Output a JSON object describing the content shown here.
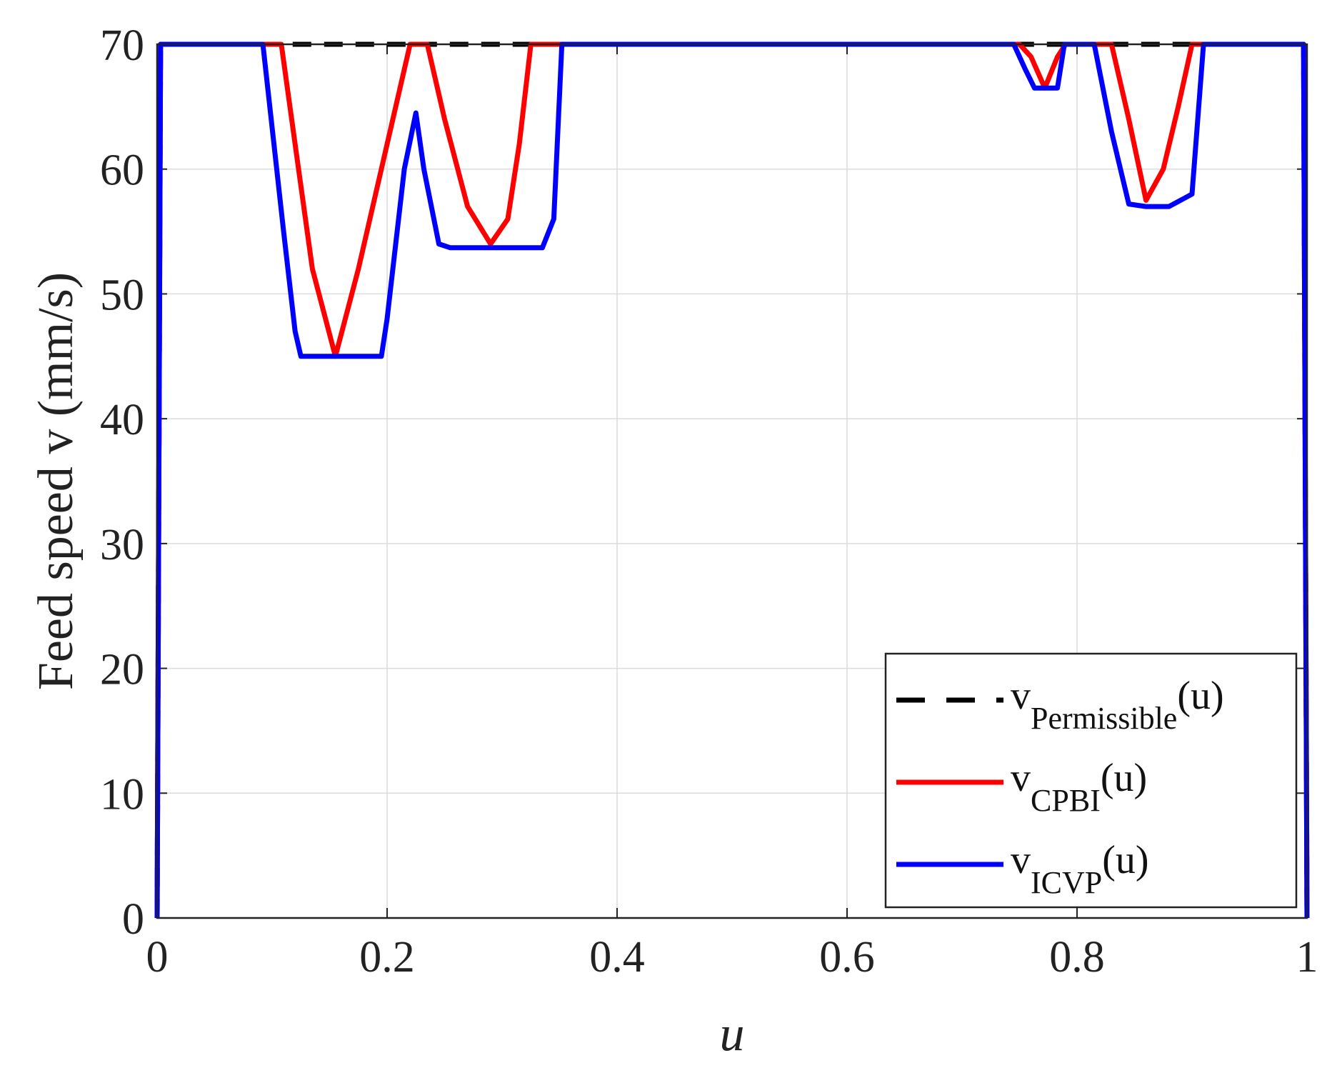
{
  "chart_data": {
    "type": "line",
    "xlabel": "u",
    "ylabel": "Feed speed v (mm/s)",
    "xlim": [
      0,
      1
    ],
    "ylim": [
      0,
      70
    ],
    "xticks": [
      "0",
      "0.2",
      "0.4",
      "0.6",
      "0.8",
      "1"
    ],
    "yticks": [
      "0",
      "10",
      "20",
      "30",
      "40",
      "50",
      "60",
      "70"
    ],
    "grid": true,
    "legend_position": "bottom-right",
    "series": [
      {
        "name": "Permissible",
        "legend_main": "v",
        "legend_sub": "Permissible",
        "legend_tail": "(u)",
        "color": "#000000",
        "style": "dashed",
        "x": [
          0,
          0.003,
          0.997,
          1
        ],
        "y": [
          0,
          70,
          70,
          0
        ]
      },
      {
        "name": "CPBI",
        "legend_main": "v",
        "legend_sub": "CPBI",
        "legend_tail": "(u)",
        "color": "#ff0000",
        "style": "solid",
        "x": [
          0,
          0.003,
          0.108,
          0.12,
          0.135,
          0.155,
          0.175,
          0.2,
          0.22,
          0.235,
          0.25,
          0.27,
          0.29,
          0.305,
          0.315,
          0.325,
          0.75,
          0.76,
          0.772,
          0.783,
          0.79,
          0.83,
          0.845,
          0.86,
          0.875,
          0.888,
          0.9,
          0.997,
          1
        ],
        "y": [
          0,
          70,
          70,
          62,
          52,
          45,
          52,
          62,
          70,
          70,
          64,
          57,
          54,
          56,
          62,
          70,
          70,
          69,
          66.5,
          69,
          70,
          70,
          64,
          57.5,
          60,
          65,
          70,
          70,
          0
        ]
      },
      {
        "name": "ICVP",
        "legend_main": "v",
        "legend_sub": "ICVP",
        "legend_tail": "(u)",
        "color": "#0000ff",
        "style": "solid",
        "x": [
          0,
          0.003,
          0.092,
          0.11,
          0.12,
          0.125,
          0.195,
          0.2,
          0.215,
          0.225,
          0.232,
          0.245,
          0.255,
          0.335,
          0.345,
          0.352,
          0.745,
          0.755,
          0.763,
          0.783,
          0.789,
          0.815,
          0.83,
          0.845,
          0.86,
          0.88,
          0.9,
          0.91,
          0.997,
          1
        ],
        "y": [
          0,
          70,
          70,
          55,
          47,
          45,
          45,
          48,
          60,
          64.5,
          60,
          54,
          53.7,
          53.7,
          56,
          70,
          70,
          68,
          66.5,
          66.5,
          70,
          70,
          63,
          57.2,
          57,
          57,
          58,
          70,
          70,
          0
        ]
      }
    ]
  }
}
